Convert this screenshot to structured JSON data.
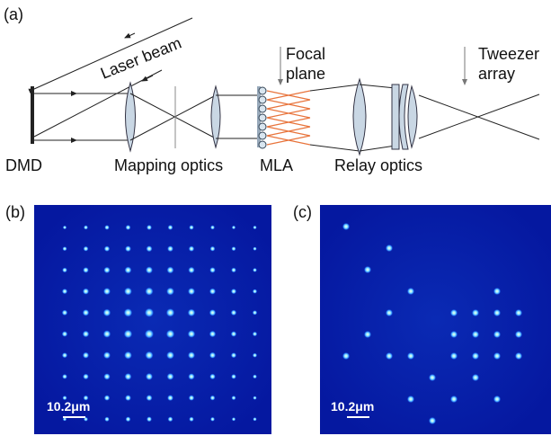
{
  "panel_a": {
    "label": "(a)",
    "laser_beam": "Laser beam",
    "focal_plane": [
      "Focal",
      "plane"
    ],
    "tweezer_array": [
      "Tweezer",
      "array"
    ],
    "dmd": "DMD",
    "mapping_optics": "Mapping optics",
    "mla": "MLA",
    "relay_optics": "Relay optics"
  },
  "panel_b": {
    "label": "(b)",
    "scale_bar": "10.2μm"
  },
  "panel_c": {
    "label": "(c)",
    "scale_bar": "10.2μm"
  }
}
